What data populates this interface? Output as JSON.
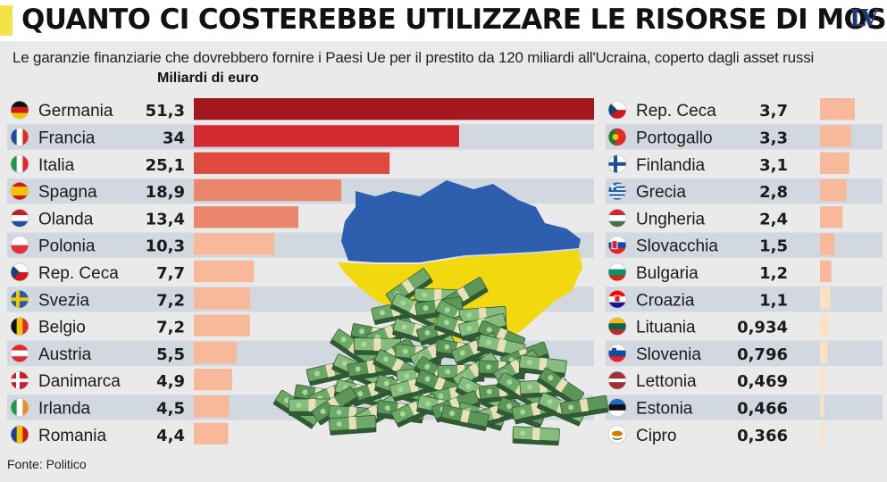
{
  "header": {
    "title": "QUANTO CI COSTEREBBE UTILIZZARE LE RISORSE DI MOSCA",
    "logo": "LV",
    "accent_color": "#f4e24a"
  },
  "subtitle": "Le garanzie finanziarie che dovrebbero fornire i Paesi Ue per il prestito da 120 miliardi all'Ucraina, coperto dagli asset russi",
  "footer": {
    "source": "Fonte: Politico"
  },
  "chart_data": {
    "type": "bar",
    "orientation": "horizontal",
    "title": "QUANTO CI COSTEREBBE UTILIZZARE LE RISORSE DI MOSCA",
    "subtitle": "Le garanzie finanziarie che dovrebbero fornire i Paesi Ue per il prestito da 120 miliardi all'Ucraina, coperto dagli asset russi",
    "unit": "Miliardi di euro",
    "xlim": [
      0,
      51.3
    ],
    "grid": false,
    "left_column": [
      {
        "country": "Germania",
        "value": 51.3,
        "label": "51,3",
        "flag": "germany-flag",
        "color": "#a5171f"
      },
      {
        "country": "Francia",
        "value": 34,
        "label": "34",
        "flag": "france-flag",
        "color": "#d52a32"
      },
      {
        "country": "Italia",
        "value": 25.1,
        "label": "25,1",
        "flag": "italy-flag",
        "color": "#df4a3e"
      },
      {
        "country": "Spagna",
        "value": 18.9,
        "label": "18,9",
        "flag": "spain-flag",
        "color": "#e9866b"
      },
      {
        "country": "Olanda",
        "value": 13.4,
        "label": "13,4",
        "flag": "netherlands-flag",
        "color": "#e9866b"
      },
      {
        "country": "Polonia",
        "value": 10.3,
        "label": "10,3",
        "flag": "poland-flag",
        "color": "#f7b999"
      },
      {
        "country": "Rep. Ceca",
        "value": 7.7,
        "label": "7,7",
        "flag": "czech-flag",
        "color": "#f7b999"
      },
      {
        "country": "Svezia",
        "value": 7.2,
        "label": "7,2",
        "flag": "sweden-flag",
        "color": "#f7b999"
      },
      {
        "country": "Belgio",
        "value": 7.2,
        "label": "7,2",
        "flag": "belgium-flag",
        "color": "#f7b999"
      },
      {
        "country": "Austria",
        "value": 5.5,
        "label": "5,5",
        "flag": "austria-flag",
        "color": "#f7b999"
      },
      {
        "country": "Danimarca",
        "value": 4.9,
        "label": "4,9",
        "flag": "denmark-flag",
        "color": "#f7b999"
      },
      {
        "country": "Irlanda",
        "value": 4.5,
        "label": "4,5",
        "flag": "ireland-flag",
        "color": "#f7b999"
      },
      {
        "country": "Romania",
        "value": 4.4,
        "label": "4,4",
        "flag": "romania-flag",
        "color": "#f7b999"
      }
    ],
    "right_column": [
      {
        "country": "Rep. Ceca",
        "value": 3.7,
        "label": "3,7",
        "flag": "czech-flag",
        "color": "#f7b999"
      },
      {
        "country": "Portogallo",
        "value": 3.3,
        "label": "3,3",
        "flag": "portugal-flag",
        "color": "#f7b999"
      },
      {
        "country": "Finlandia",
        "value": 3.1,
        "label": "3,1",
        "flag": "finland-flag",
        "color": "#f7b999"
      },
      {
        "country": "Grecia",
        "value": 2.8,
        "label": "2,8",
        "flag": "greece-flag",
        "color": "#f7b999"
      },
      {
        "country": "Ungheria",
        "value": 2.4,
        "label": "2,4",
        "flag": "hungary-flag",
        "color": "#f7b999"
      },
      {
        "country": "Slovacchia",
        "value": 1.5,
        "label": "1,5",
        "flag": "slovakia-flag",
        "color": "#f7b999"
      },
      {
        "country": "Bulgaria",
        "value": 1.2,
        "label": "1,2",
        "flag": "bulgaria-flag",
        "color": "#f7b999"
      },
      {
        "country": "Croazia",
        "value": 1.1,
        "label": "1,1",
        "flag": "croatia-flag",
        "color": "#fbe0c2"
      },
      {
        "country": "Lituania",
        "value": 0.934,
        "label": "0,934",
        "flag": "lithuania-flag",
        "color": "#fbe0c2"
      },
      {
        "country": "Slovenia",
        "value": 0.796,
        "label": "0,796",
        "flag": "slovenia-flag",
        "color": "#fbe0c2"
      },
      {
        "country": "Lettonia",
        "value": 0.469,
        "label": "0,469",
        "flag": "latvia-flag",
        "color": "#fbe0c2"
      },
      {
        "country": "Estonia",
        "value": 0.466,
        "label": "0,466",
        "flag": "estonia-flag",
        "color": "#fbe0c2"
      },
      {
        "country": "Cipro",
        "value": 0.366,
        "label": "0,366",
        "flag": "cyprus-flag",
        "color": "#fbe0c2"
      }
    ]
  },
  "illustration": {
    "map": "ukraine-map-flag-illustration",
    "money": "euro-banknote-pile-illustration",
    "map_colors": [
      "#2d5fae",
      "#f2d80f"
    ]
  }
}
